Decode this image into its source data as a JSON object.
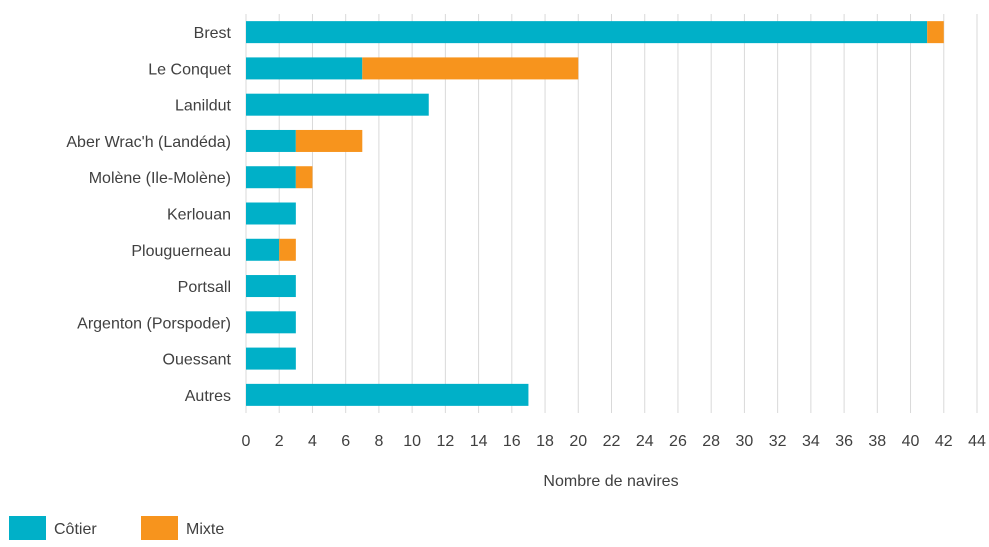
{
  "chart_data": {
    "type": "bar",
    "orientation": "horizontal",
    "stacked": true,
    "categories": [
      "Brest",
      "Le Conquet",
      "Lanildut",
      "Aber Wrac'h (Landéda)",
      "Molène (Ile-Molène)",
      "Kerlouan",
      "Plouguerneau",
      "Portsall",
      "Argenton (Porspoder)",
      "Ouessant",
      "Autres"
    ],
    "series": [
      {
        "name": "Côtier",
        "color": "#00b0c8",
        "values": [
          41,
          7,
          11,
          3,
          3,
          3,
          2,
          3,
          3,
          3,
          17
        ]
      },
      {
        "name": "Mixte",
        "color": "#f7941d",
        "values": [
          1,
          13,
          0,
          4,
          1,
          0,
          1,
          0,
          0,
          0,
          0
        ]
      }
    ],
    "xlabel": "Nombre de navires",
    "ylabel": "",
    "xlim": [
      0,
      44
    ],
    "xticks": [
      0,
      2,
      4,
      6,
      8,
      10,
      12,
      14,
      16,
      18,
      20,
      22,
      24,
      26,
      28,
      30,
      32,
      34,
      36,
      38,
      40,
      42,
      44
    ],
    "grid": "vertical",
    "legend_position": "bottom-left",
    "grid_color": "#d9d9d9",
    "text_color": "#404040"
  }
}
